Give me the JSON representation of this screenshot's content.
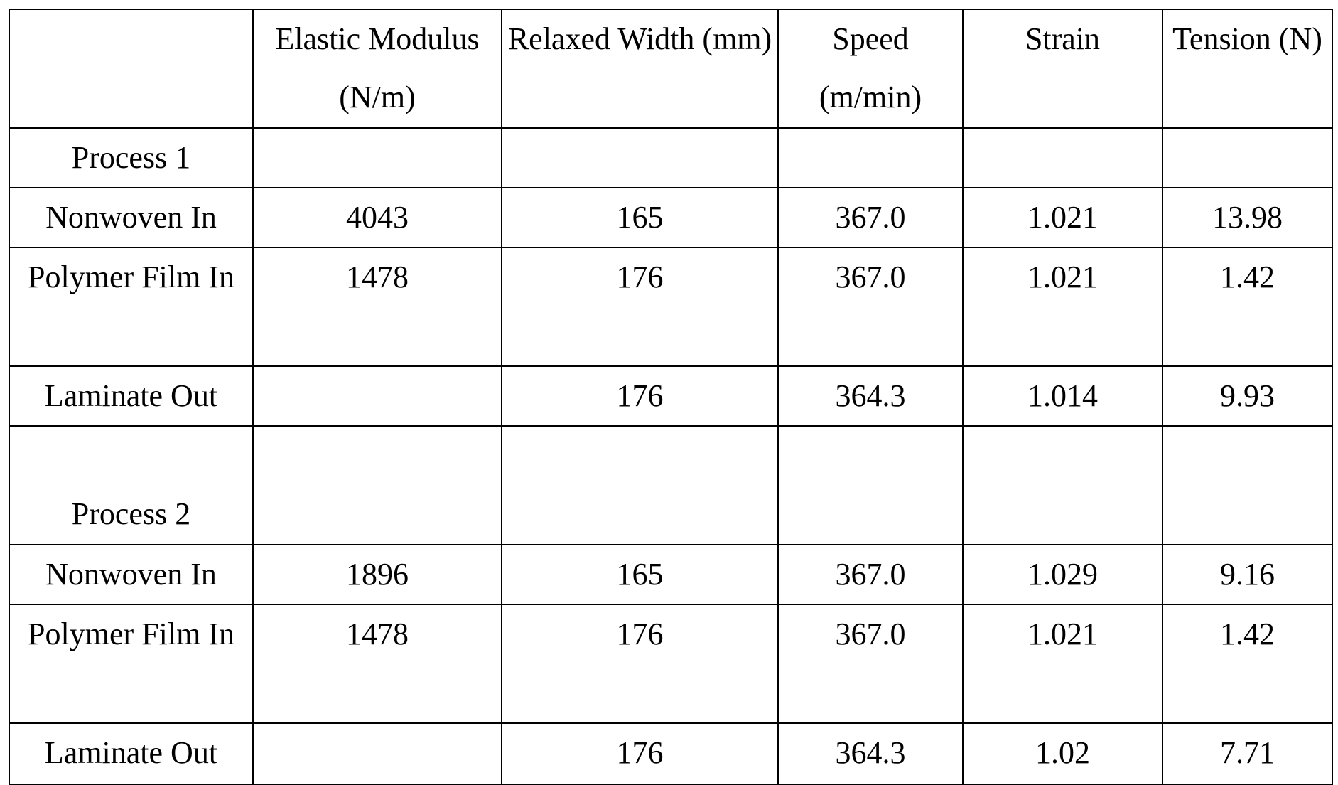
{
  "table": {
    "headers": [
      "",
      "Elastic Modulus (N/m)",
      "Relaxed Width (mm)",
      "Speed (m/min)",
      "Strain",
      "Tension (N)"
    ],
    "rows": [
      [
        "Process 1",
        "",
        "",
        "",
        "",
        ""
      ],
      [
        "Nonwoven In",
        "4043",
        "165",
        "367.0",
        "1.021",
        "13.98"
      ],
      [
        "Polymer Film In",
        "1478",
        "176",
        "367.0",
        "1.021",
        "1.42"
      ],
      [
        "Laminate Out",
        "",
        "176",
        "364.3",
        "1.014",
        "9.93"
      ],
      [
        "Process 2",
        "",
        "",
        "",
        "",
        ""
      ],
      [
        "Nonwoven In",
        "1896",
        "165",
        "367.0",
        "1.029",
        "9.16"
      ],
      [
        "Polymer Film In",
        "1478",
        "176",
        "367.0",
        "1.021",
        "1.42"
      ],
      [
        "Laminate Out",
        "",
        "176",
        "364.3",
        "1.02",
        "7.71"
      ]
    ]
  }
}
